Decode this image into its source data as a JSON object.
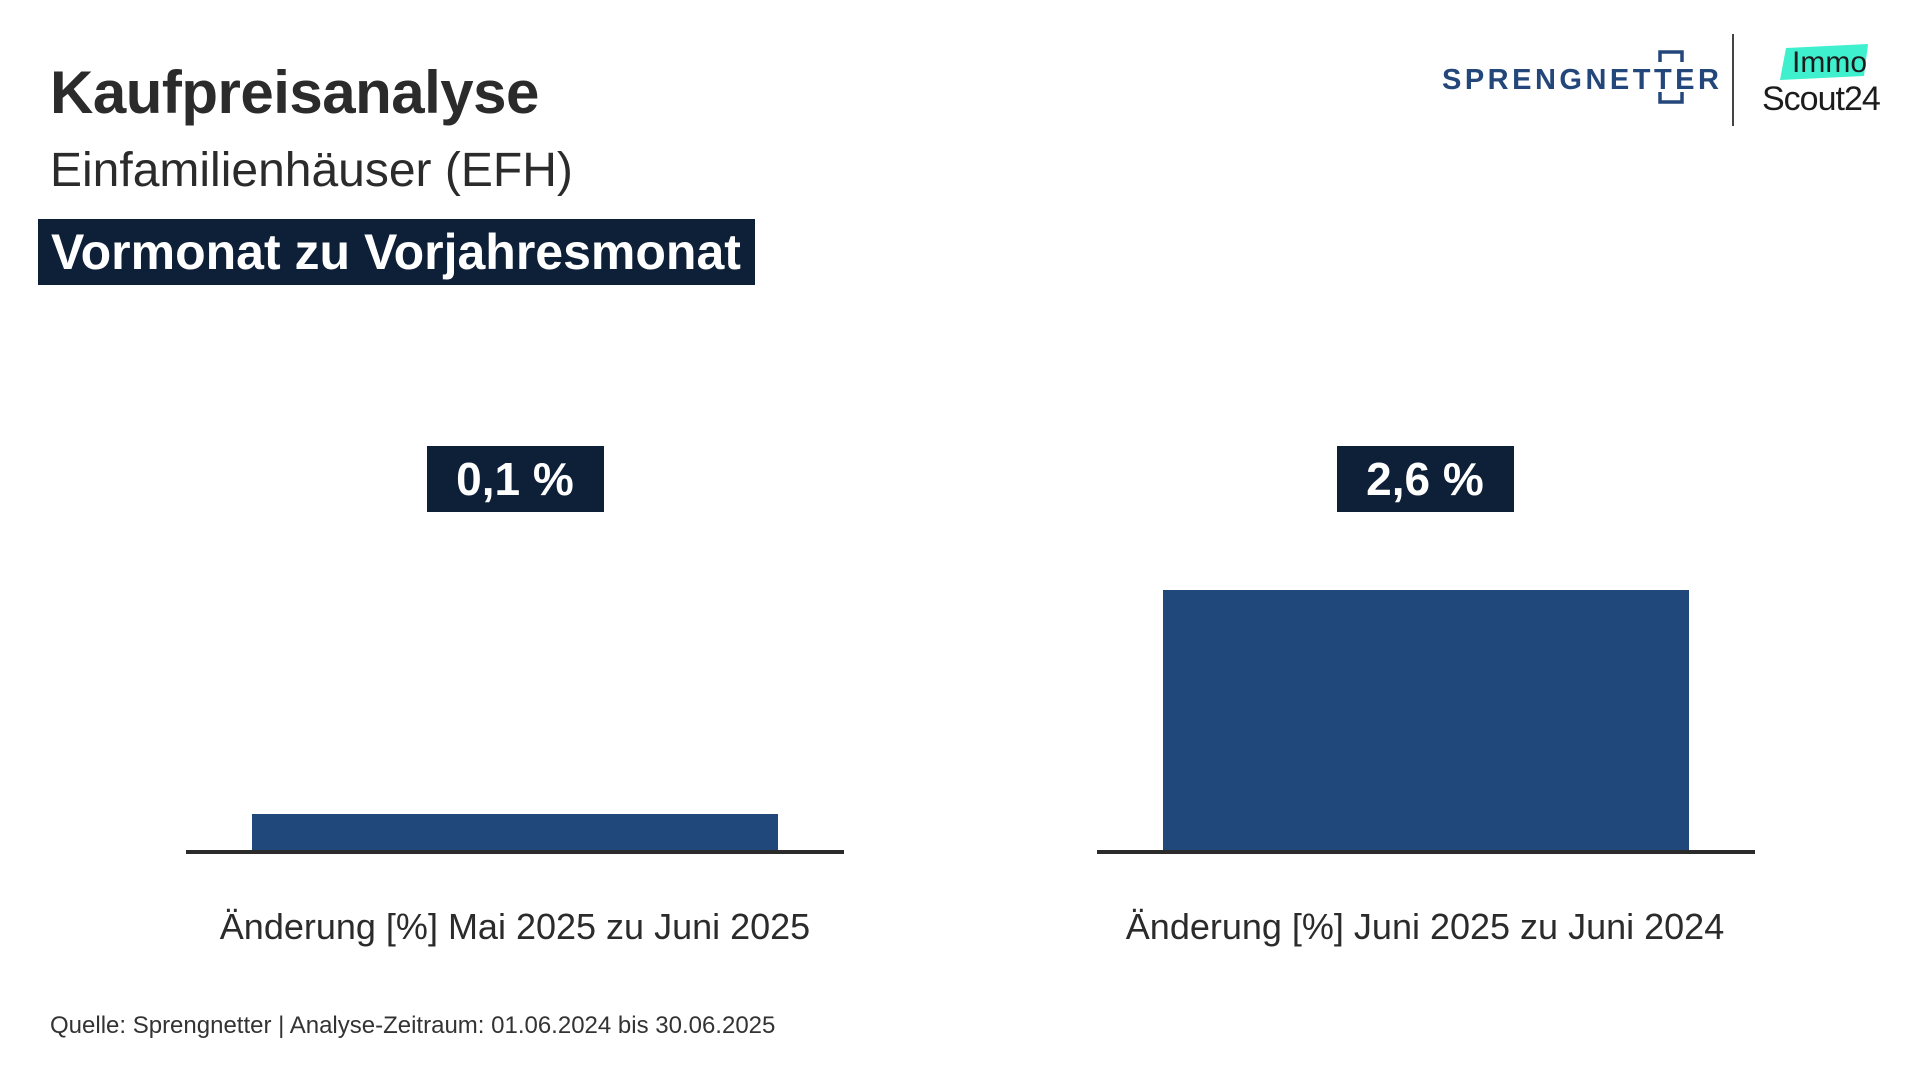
{
  "header": {
    "title": "Kaufpreisanalyse",
    "subtitle": "Einfamilienhäuser (EFH)",
    "banner": "Vormonat zu Vorjahresmonat"
  },
  "logos": {
    "sprengnetter": "SPRENGNETTER",
    "immo": "Immo",
    "scout": "Scout24",
    "immo_accent_color": "#3ff0cf",
    "sprengnetter_color": "#23477a"
  },
  "colors": {
    "bar": "#21487b",
    "label_box": "#0e1f38",
    "baseline": "#2b2b2b"
  },
  "chart_data": [
    {
      "type": "bar",
      "categories": [
        "Änderung [%] Mai 2025 zu Juni 2025"
      ],
      "values": [
        0.1
      ],
      "value_labels": [
        "0,1 %"
      ],
      "unit": "%"
    },
    {
      "type": "bar",
      "categories": [
        "Änderung [%] Juni 2025 zu Juni 2024"
      ],
      "values": [
        2.6
      ],
      "value_labels": [
        "2,6 %"
      ],
      "unit": "%"
    }
  ],
  "footer": {
    "source": "Quelle: Sprengnetter | Analyse-Zeitraum: 01.06.2024 bis 30.06.2025"
  }
}
